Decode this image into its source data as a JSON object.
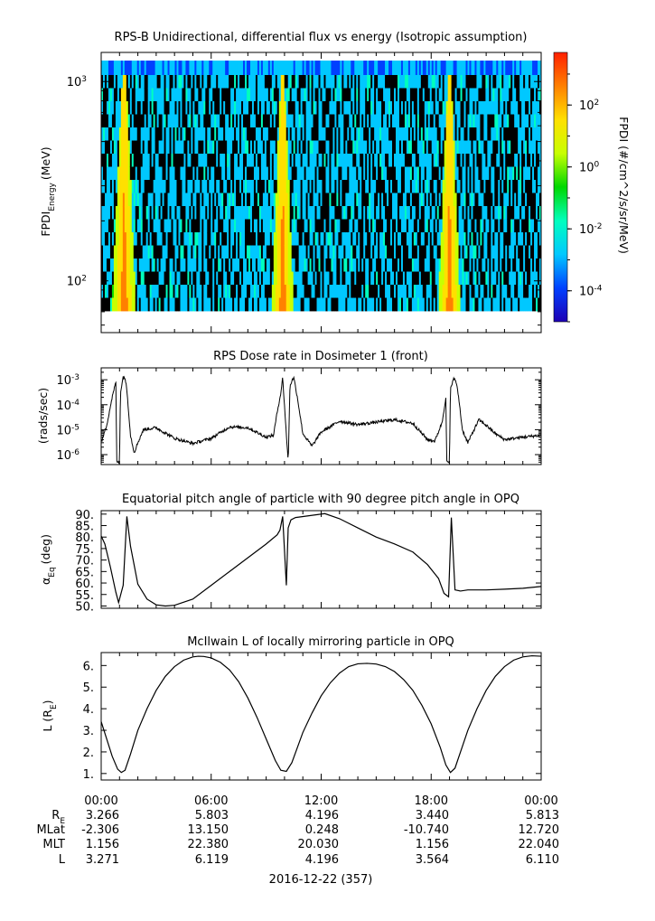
{
  "colors": {
    "background": "#ffffff",
    "trace": "#000000",
    "colormap": [
      "#1e00b4",
      "#0040ff",
      "#00c8ff",
      "#00ffbe",
      "#00d800",
      "#c8ff00",
      "#ffe000",
      "#ff8000",
      "#ff2000"
    ]
  },
  "chart_data": [
    {
      "type": "heatmap",
      "title": "RPS-B  Unidirectional, differential flux vs energy (Isotropic assumption)",
      "ylabel_main": "FPDI",
      "ylabel_sub": "Energy",
      "ylabel_unit": "(MeV)",
      "y_scale": "log",
      "ylim": [
        55,
        1400
      ],
      "ytick_mantissa": "10",
      "ytick_values": [
        100,
        1000
      ],
      "ytick_exponents": [
        "2",
        "3"
      ],
      "x_unit": "hours since 2016-12-22 00:00",
      "xlim": [
        0,
        24
      ],
      "energy_bands": 18,
      "time_bins": 245,
      "belt_passes_hours": [
        [
          0.6,
          1.9
        ],
        [
          9.3,
          10.5
        ],
        [
          18.4,
          19.6
        ]
      ],
      "colorbar": {
        "label": "FPDI (#/cm^2/s/sr/MeV)",
        "scale": "log",
        "range": [
          1e-05,
          5000
        ],
        "tick_mantissa": "10",
        "tick_values": [
          0.0001,
          0.01,
          1,
          100
        ],
        "tick_exponents": [
          "-4",
          "-2",
          "0",
          "2"
        ]
      }
    },
    {
      "type": "line",
      "title": "RPS  Dose rate in Dosimeter 1 (front)",
      "ylabel": "(rads/sec)",
      "y_scale": "log",
      "ylim": [
        4e-07,
        0.003
      ],
      "ytick_mantissa": "10",
      "ytick_values": [
        1e-06,
        1e-05,
        0.0001,
        0.001
      ],
      "ytick_exponents": [
        "-6",
        "-5",
        "-4",
        "-3"
      ],
      "xlim": [
        0,
        24
      ],
      "x": [
        0,
        0.3,
        0.6,
        0.8,
        0.85,
        1.0,
        1.05,
        1.2,
        1.3,
        1.4,
        1.5,
        1.6,
        1.8,
        2.0,
        2.3,
        3.0,
        4.0,
        5.0,
        6.0,
        7.0,
        8.0,
        9.0,
        9.4,
        9.6,
        9.8,
        9.9,
        10.2,
        10.3,
        10.5,
        10.7,
        11.0,
        11.5,
        12.0,
        13.0,
        14.0,
        15.0,
        16.0,
        17.0,
        17.8,
        18.2,
        18.6,
        18.8,
        18.85,
        19.0,
        19.05,
        19.2,
        19.35,
        19.5,
        19.7,
        20.0,
        20.6,
        21.0,
        21.5,
        22.0,
        23.0,
        24.0
      ],
      "y": [
        3e-06,
        1.5e-05,
        0.0002,
        0.0008,
        5e-07,
        5e-07,
        0.0003,
        0.0013,
        0.0012,
        0.0004,
        5e-05,
        6e-06,
        1.2e-06,
        3e-06,
        1e-05,
        1.2e-05,
        4.5e-06,
        2.8e-06,
        4.5e-06,
        1.3e-05,
        1.2e-05,
        5e-06,
        6e-06,
        5e-05,
        0.0003,
        0.0012,
        5e-07,
        0.0006,
        0.0013,
        0.0002,
        7e-06,
        2.2e-06,
        8e-06,
        2.2e-05,
        1.6e-05,
        2e-05,
        2.5e-05,
        1.8e-05,
        4e-06,
        3.5e-06,
        2e-05,
        0.0002,
        5e-07,
        5e-07,
        0.0004,
        0.0011,
        0.0009,
        0.0002,
        1e-05,
        3e-06,
        2.5e-05,
        1.5e-05,
        7e-06,
        4e-06,
        5e-06,
        6e-06
      ]
    },
    {
      "type": "line",
      "title": "Equatorial pitch angle of particle with 90 degree pitch angle in OPQ",
      "ylabel_main": "α",
      "ylabel_sub": "Eq",
      "ylabel_unit": "(deg)",
      "ylim": [
        49,
        91.5
      ],
      "ytick_values": [
        50,
        55,
        60,
        65,
        70,
        75,
        80,
        85,
        90
      ],
      "ytick_labels": [
        "50.",
        "55.",
        "60.",
        "65.",
        "70.",
        "75.",
        "80.",
        "85.",
        "90."
      ],
      "xlim": [
        0,
        24
      ],
      "x": [
        0,
        0.2,
        0.5,
        0.8,
        0.95,
        1.2,
        1.4,
        1.6,
        2.0,
        2.5,
        3.0,
        3.5,
        4.0,
        5.0,
        6.0,
        7.0,
        8.0,
        9.0,
        9.6,
        9.75,
        9.9,
        10.1,
        10.2,
        10.35,
        10.6,
        12.2,
        13.0,
        14.0,
        15.0,
        16.0,
        17.0,
        17.8,
        18.4,
        18.7,
        18.95,
        19.1,
        19.3,
        19.6,
        20.0,
        21.0,
        22.0,
        23.0,
        24.0
      ],
      "y": [
        80.5,
        77,
        67,
        56,
        51.5,
        59,
        89,
        76,
        59.5,
        53,
        50.5,
        50,
        50.3,
        53,
        59,
        65,
        71,
        77,
        81,
        83,
        89,
        59,
        84,
        87.5,
        88.5,
        90.2,
        88,
        84,
        80,
        77,
        73.5,
        68,
        62,
        55.5,
        54,
        88.5,
        57,
        56.5,
        57,
        57,
        57.3,
        57.7,
        58.5
      ]
    },
    {
      "type": "line",
      "title": "McIlwain L of locally mirroring particle in OPQ",
      "ylabel_main": "L (R",
      "ylabel_sub": "E",
      "ylabel_unit": ")",
      "ylim": [
        0.7,
        6.6
      ],
      "ytick_values": [
        1,
        2,
        3,
        4,
        5,
        6
      ],
      "ytick_labels": [
        "1.",
        "2.",
        "3.",
        "4.",
        "5.",
        "6."
      ],
      "xlim": [
        0,
        24
      ],
      "x": [
        0,
        0.3,
        0.6,
        0.9,
        1.1,
        1.3,
        1.6,
        2.0,
        2.5,
        3.0,
        3.5,
        4.0,
        4.5,
        5.0,
        5.3,
        5.6,
        6.0,
        6.5,
        7.0,
        7.5,
        8.0,
        8.5,
        9.0,
        9.5,
        9.8,
        10.1,
        10.4,
        10.7,
        11.0,
        11.5,
        12.0,
        12.5,
        13.0,
        13.5,
        14.0,
        14.5,
        15.0,
        15.5,
        16.0,
        16.5,
        17.0,
        17.5,
        18.0,
        18.5,
        18.8,
        19.05,
        19.3,
        19.6,
        20.0,
        20.5,
        21.0,
        21.5,
        22.0,
        22.5,
        23.0,
        23.5,
        24.0
      ],
      "y": [
        3.4,
        2.6,
        1.8,
        1.2,
        1.05,
        1.15,
        1.9,
        3.0,
        4.0,
        4.85,
        5.5,
        5.95,
        6.25,
        6.4,
        6.43,
        6.42,
        6.35,
        6.15,
        5.8,
        5.25,
        4.5,
        3.6,
        2.6,
        1.6,
        1.15,
        1.1,
        1.5,
        2.2,
        2.9,
        3.8,
        4.6,
        5.2,
        5.65,
        5.95,
        6.08,
        6.1,
        6.07,
        5.95,
        5.72,
        5.35,
        4.85,
        4.15,
        3.3,
        2.2,
        1.4,
        1.05,
        1.25,
        2.0,
        3.0,
        4.0,
        4.85,
        5.5,
        5.95,
        6.25,
        6.4,
        6.45,
        6.43
      ]
    }
  ],
  "time_axis": {
    "tick_labels": [
      "00:00",
      "06:00",
      "12:00",
      "18:00",
      "00:00"
    ],
    "date_label": "2016-12-22 (357)"
  },
  "ephemeris": {
    "rows": [
      {
        "label": "R",
        "label_sub": "E",
        "values": [
          "3.266",
          "5.803",
          "4.196",
          "3.440",
          "5.813"
        ]
      },
      {
        "label": "MLat",
        "label_sub": "",
        "values": [
          "-2.306",
          "13.150",
          "0.248",
          "-10.740",
          "12.720"
        ]
      },
      {
        "label": "MLT",
        "label_sub": "",
        "values": [
          "1.156",
          "22.380",
          "20.030",
          "1.156",
          "22.040"
        ]
      },
      {
        "label": "L",
        "label_sub": "",
        "values": [
          "3.271",
          "6.119",
          "4.196",
          "3.564",
          "6.110"
        ]
      }
    ]
  }
}
